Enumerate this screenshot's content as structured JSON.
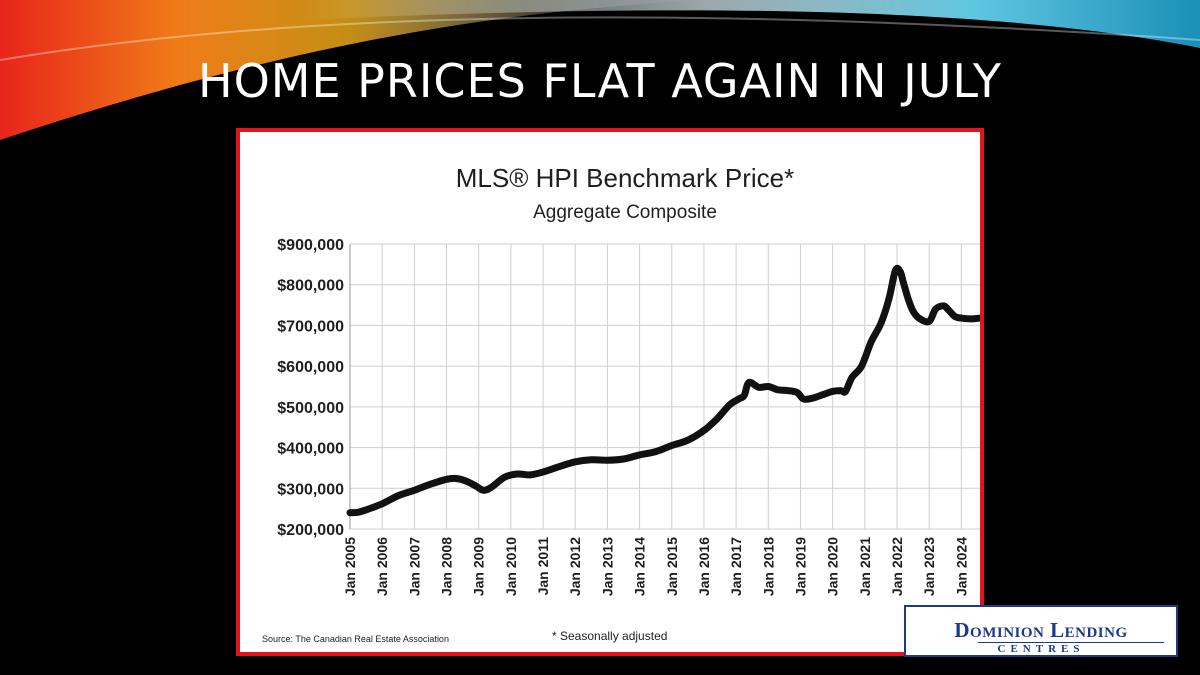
{
  "slide": {
    "title": "HOME PRICES FLAT AGAIN IN JULY",
    "accent_color": "#e3141b"
  },
  "logo": {
    "name_line1": "Dominion Lending",
    "name_line2": "CENTRES",
    "color": "#1b3a8a"
  },
  "chart_data": {
    "type": "line",
    "title": "MLS® HPI Benchmark Price*",
    "subtitle": "Aggregate Composite",
    "source": "Source: The Canadian Real Estate Association",
    "footnote": "* Seasonally adjusted",
    "ylim": [
      200000,
      900000
    ],
    "y_ticks": [
      200000,
      300000,
      400000,
      500000,
      600000,
      700000,
      800000,
      900000
    ],
    "y_tick_labels": [
      "$200,000",
      "$300,000",
      "$400,000",
      "$500,000",
      "$600,000",
      "$700,000",
      "$800,000",
      "$900,000"
    ],
    "x_ticks": [
      2005,
      2006,
      2007,
      2008,
      2009,
      2010,
      2011,
      2012,
      2013,
      2014,
      2015,
      2016,
      2017,
      2018,
      2019,
      2020,
      2021,
      2022,
      2023,
      2024
    ],
    "x_tick_labels": [
      "Jan 2005",
      "Jan 2006",
      "Jan 2007",
      "Jan 2008",
      "Jan 2009",
      "Jan 2010",
      "Jan 2011",
      "Jan 2012",
      "Jan 2013",
      "Jan 2014",
      "Jan 2015",
      "Jan 2016",
      "Jan 2017",
      "Jan 2018",
      "Jan 2019",
      "Jan 2020",
      "Jan 2021",
      "Jan 2022",
      "Jan 2023",
      "Jan 2024"
    ],
    "xlim": [
      2005.0,
      2024.58
    ],
    "grid": true,
    "line_color": "#111111",
    "series": [
      {
        "name": "",
        "x": [
          2005.0,
          2005.25,
          2005.5,
          2006.0,
          2006.5,
          2007.0,
          2007.5,
          2008.0,
          2008.3,
          2008.6,
          2008.9,
          2009.15,
          2009.4,
          2009.8,
          2010.2,
          2010.6,
          2011.0,
          2011.5,
          2012.0,
          2012.5,
          2013.0,
          2013.5,
          2014.0,
          2014.5,
          2015.0,
          2015.5,
          2016.0,
          2016.4,
          2016.8,
          2017.1,
          2017.25,
          2017.4,
          2017.7,
          2018.0,
          2018.3,
          2018.6,
          2018.9,
          2019.1,
          2019.4,
          2019.7,
          2020.0,
          2020.25,
          2020.4,
          2020.6,
          2020.9,
          2021.2,
          2021.5,
          2021.75,
          2021.95,
          2022.1,
          2022.2,
          2022.35,
          2022.5,
          2022.7,
          2023.0,
          2023.2,
          2023.45,
          2023.6,
          2023.8,
          2024.0,
          2024.3,
          2024.58
        ],
        "values": [
          240000,
          241000,
          247000,
          262000,
          282000,
          295000,
          310000,
          322000,
          324000,
          318000,
          306000,
          295000,
          303000,
          327000,
          335000,
          333000,
          340000,
          353000,
          365000,
          370000,
          369000,
          372000,
          382000,
          390000,
          405000,
          418000,
          442000,
          470000,
          505000,
          520000,
          528000,
          560000,
          548000,
          550000,
          542000,
          540000,
          535000,
          519000,
          522000,
          530000,
          538000,
          540000,
          538000,
          572000,
          600000,
          660000,
          705000,
          765000,
          835000,
          832000,
          805000,
          765000,
          735000,
          717000,
          710000,
          740000,
          748000,
          738000,
          722000,
          718000,
          716000,
          718000
        ]
      }
    ]
  }
}
